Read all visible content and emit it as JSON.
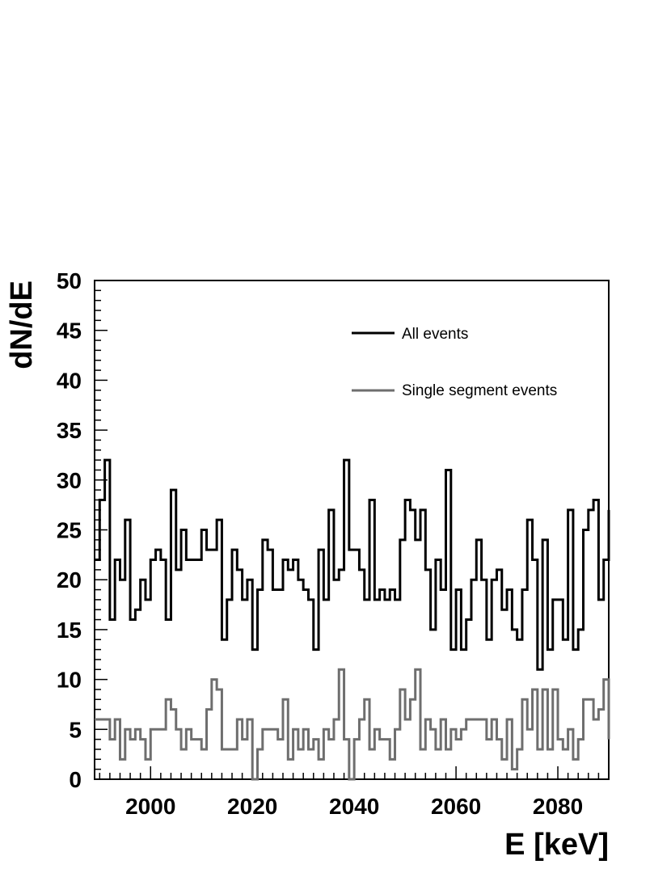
{
  "chart_data": {
    "type": "line",
    "style": "step-histogram",
    "xlabel": "E [keV]",
    "ylabel": "dN/dE",
    "xlim": [
      1989,
      2090
    ],
    "ylim": [
      0,
      50
    ],
    "bin_width": 1,
    "x_ticks": [
      2000,
      2020,
      2040,
      2060,
      2080
    ],
    "y_ticks": [
      0,
      5,
      10,
      15,
      20,
      25,
      30,
      35,
      40,
      45,
      50
    ],
    "grid": false,
    "legend_position": "top-right",
    "series": [
      {
        "name": "All events",
        "color": "#000000",
        "values": [
          22,
          28,
          32,
          16,
          22,
          20,
          26,
          16,
          17,
          20,
          18,
          22,
          23,
          22,
          16,
          29,
          21,
          25,
          22,
          22,
          22,
          25,
          23,
          23,
          26,
          14,
          18,
          23,
          21,
          18,
          20,
          13,
          19,
          24,
          23,
          19,
          19,
          22,
          21,
          22,
          20,
          19,
          18,
          13,
          23,
          18,
          27,
          20,
          21,
          32,
          23,
          23,
          21,
          18,
          28,
          18,
          19,
          18,
          19,
          18,
          24,
          28,
          27,
          24,
          27,
          21,
          15,
          22,
          19,
          31,
          13,
          19,
          13,
          16,
          20,
          24,
          20,
          14,
          20,
          21,
          17,
          19,
          15,
          14,
          19,
          26,
          22,
          11,
          24,
          13,
          18,
          18,
          14,
          27,
          13,
          15,
          25,
          27,
          28,
          18,
          22,
          27
        ]
      },
      {
        "name": "Single segment events",
        "color": "#6e6e6e",
        "values": [
          6,
          6,
          6,
          4,
          6,
          2,
          5,
          4,
          5,
          4,
          2,
          5,
          5,
          5,
          8,
          7,
          5,
          3,
          5,
          4,
          4,
          3,
          7,
          10,
          9,
          3,
          3,
          3,
          6,
          4,
          6,
          0,
          3,
          5,
          5,
          5,
          4,
          8,
          2,
          5,
          3,
          5,
          3,
          4,
          2,
          5,
          4,
          6,
          11,
          4,
          0,
          4,
          6,
          8,
          3,
          5,
          4,
          4,
          2,
          5,
          9,
          6,
          8,
          11,
          3,
          6,
          5,
          3,
          6,
          3,
          5,
          4,
          5,
          6,
          6,
          6,
          6,
          4,
          6,
          4,
          2,
          6,
          1,
          3,
          8,
          5,
          9,
          3,
          9,
          3,
          9,
          4,
          3,
          5,
          2,
          4,
          8,
          8,
          6,
          7,
          10,
          4
        ]
      }
    ]
  }
}
